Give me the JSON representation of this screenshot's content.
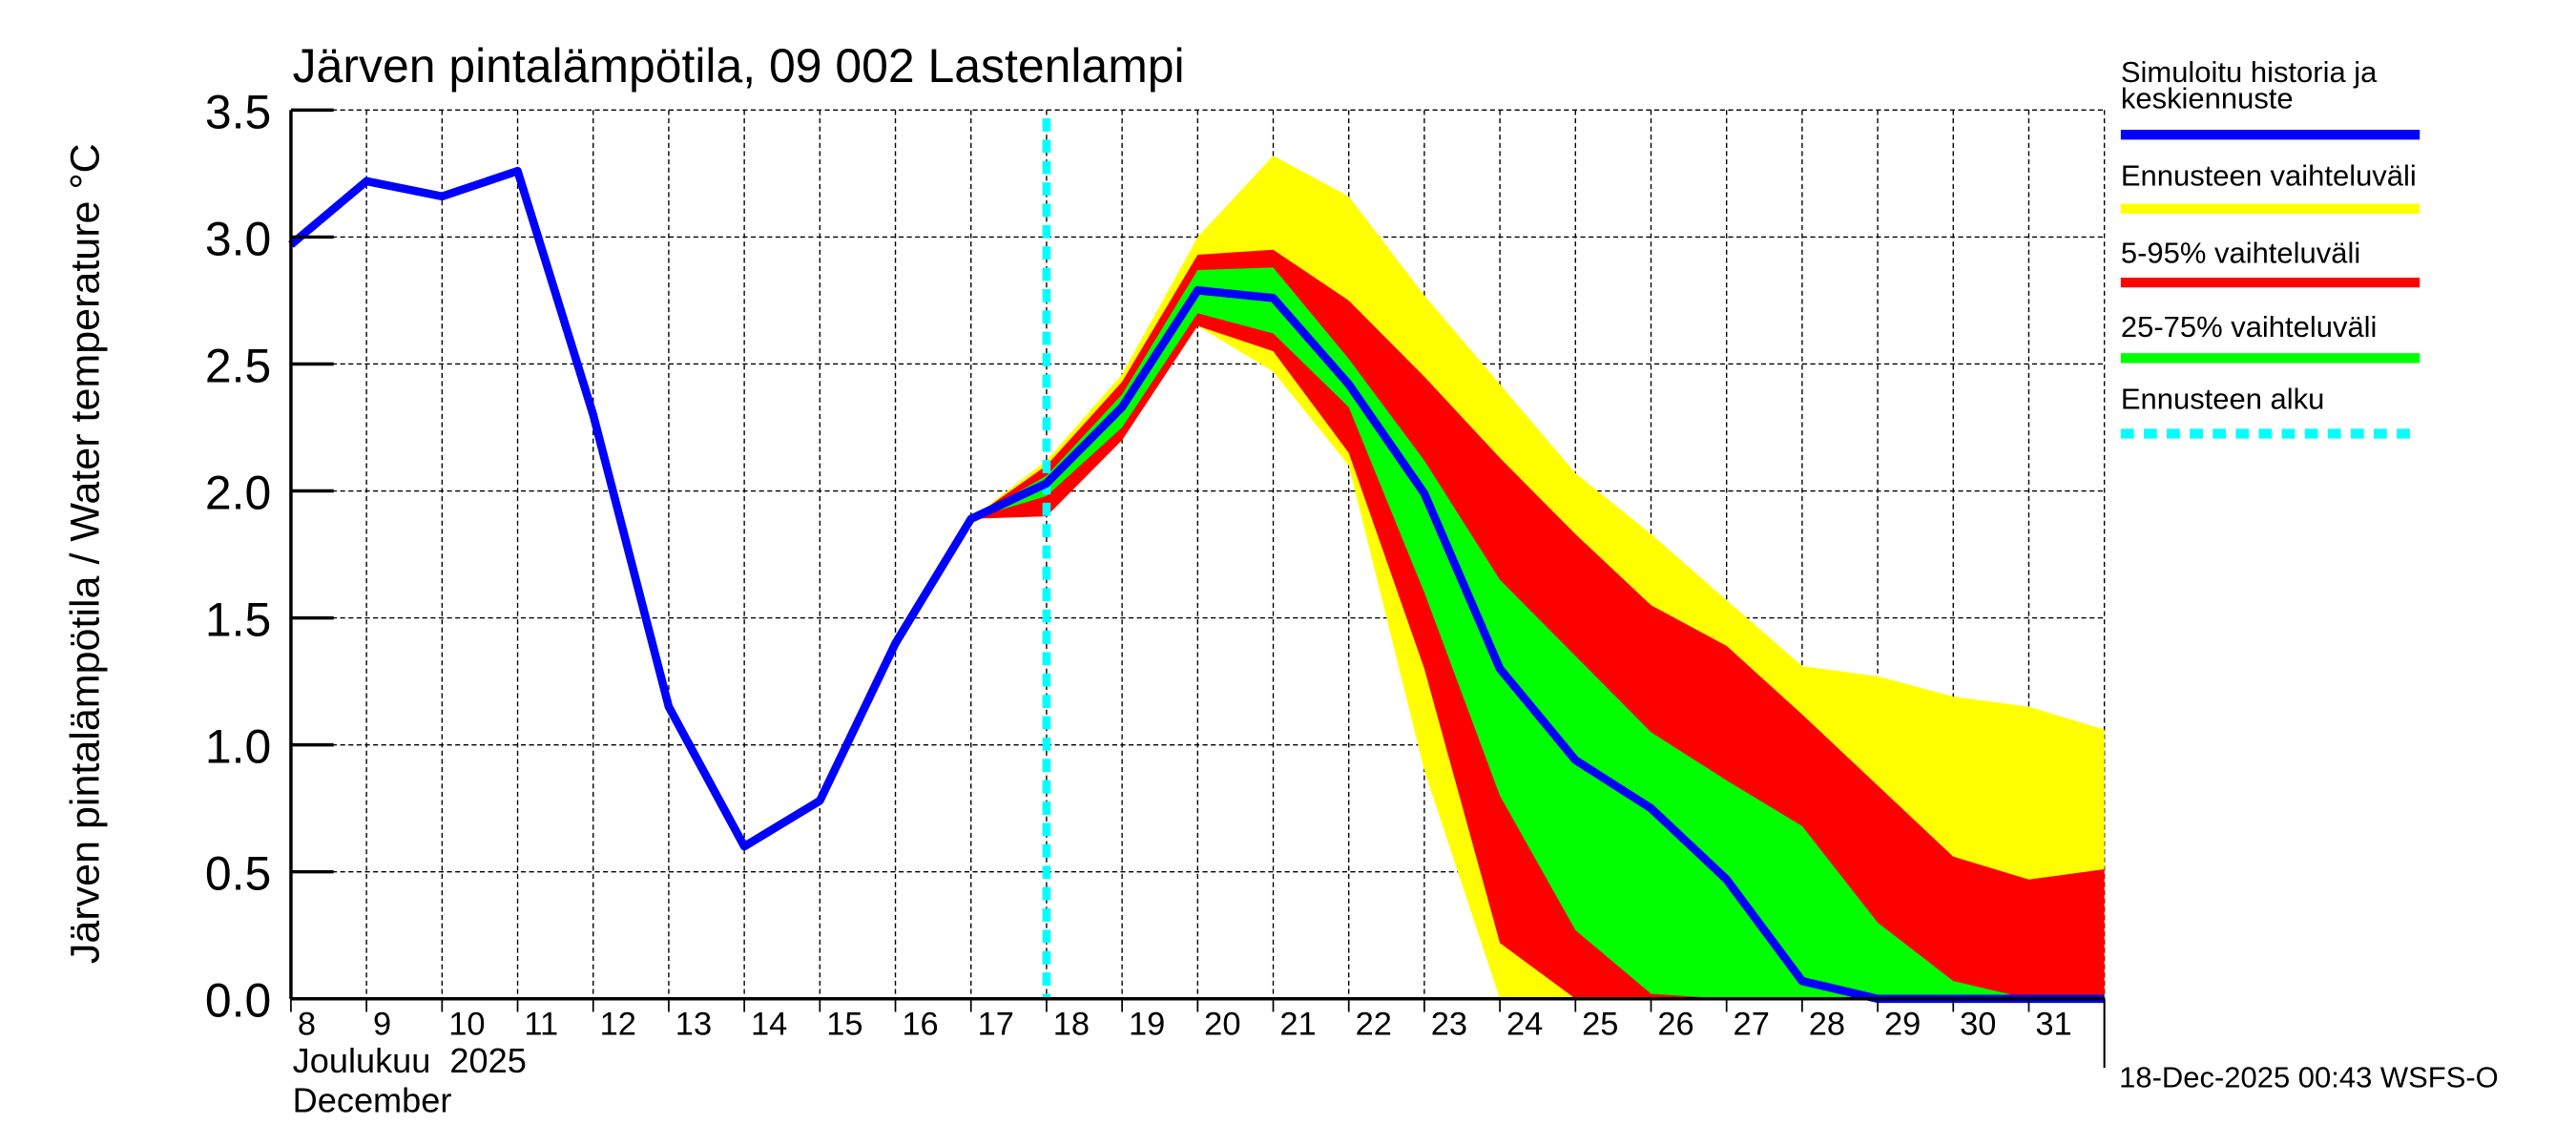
{
  "chart_data": {
    "type": "area",
    "title": "Järven pintalämpötila, 09 002 Lastenlampi",
    "ylabel": "Järven pintalämpötila / Water temperature °C",
    "xlabel_line1": "Joulukuu  2025",
    "xlabel_line2": "December",
    "ylim": [
      0,
      3.5
    ],
    "yticks": [
      "0.0",
      "0.5",
      "1.0",
      "1.5",
      "2.0",
      "2.5",
      "3.0",
      "3.5"
    ],
    "ytick_values": [
      0,
      0.5,
      1,
      1.5,
      2,
      2.5,
      3,
      3.5
    ],
    "xlim": [
      8,
      32
    ],
    "xticks": [
      "8",
      "9",
      "10",
      "11",
      "12",
      "13",
      "14",
      "15",
      "16",
      "17",
      "18",
      "19",
      "20",
      "21",
      "22",
      "23",
      "24",
      "25",
      "26",
      "27",
      "28",
      "29",
      "30",
      "31"
    ],
    "grid": true,
    "forecast_start_day": 18,
    "series": [
      {
        "name": "Ennusteen vaihteluväli",
        "color": "#ffff00",
        "x": [
          17,
          18,
          19,
          20,
          21,
          22,
          23,
          24,
          25,
          26,
          27,
          28,
          29,
          30,
          31,
          32
        ],
        "low": [
          1.89,
          1.92,
          2.2,
          2.65,
          2.47,
          2.1,
          0.9,
          0,
          0,
          0,
          0,
          0,
          0,
          0,
          0,
          0
        ],
        "high": [
          1.89,
          2.12,
          2.46,
          3.0,
          3.32,
          3.16,
          2.77,
          2.42,
          2.07,
          1.83,
          1.57,
          1.31,
          1.27,
          1.19,
          1.15,
          1.06
        ]
      },
      {
        "name": "5-95% vaihteluväli",
        "color": "#ff0000",
        "x": [
          17,
          18,
          19,
          20,
          21,
          22,
          23,
          24,
          25,
          26,
          27,
          28,
          29,
          30,
          31,
          32
        ],
        "low": [
          1.89,
          1.9,
          2.2,
          2.65,
          2.55,
          2.15,
          1.3,
          0.22,
          0,
          0,
          0,
          0,
          0,
          0,
          0,
          0
        ],
        "high": [
          1.89,
          2.1,
          2.43,
          2.93,
          2.95,
          2.75,
          2.45,
          2.13,
          1.83,
          1.55,
          1.39,
          1.12,
          0.84,
          0.56,
          0.47,
          0.51
        ]
      },
      {
        "name": "25-75% vaihteluväli",
        "color": "#00ff00",
        "x": [
          17,
          18,
          19,
          20,
          21,
          22,
          23,
          24,
          25,
          26,
          27,
          28,
          29,
          30,
          31,
          32
        ],
        "low": [
          1.89,
          1.98,
          2.25,
          2.7,
          2.62,
          2.33,
          1.6,
          0.8,
          0.27,
          0.02,
          0,
          0,
          0,
          0,
          0,
          0
        ],
        "high": [
          1.89,
          2.06,
          2.38,
          2.87,
          2.88,
          2.52,
          2.12,
          1.65,
          1.35,
          1.05,
          0.86,
          0.68,
          0.3,
          0.07,
          0,
          0
        ]
      },
      {
        "name": "Simuloitu historia ja keskiennuste",
        "color": "#0000ff",
        "x": [
          8,
          9,
          10,
          11,
          12,
          13,
          14,
          15,
          16,
          17,
          18,
          19,
          20,
          21,
          22,
          23,
          24,
          25,
          26,
          27,
          28,
          29,
          30,
          31,
          32
        ],
        "values": [
          2.97,
          3.22,
          3.16,
          3.26,
          2.3,
          1.15,
          0.6,
          0.78,
          1.4,
          1.89,
          2.03,
          2.33,
          2.79,
          2.76,
          2.42,
          1.99,
          1.3,
          0.94,
          0.75,
          0.47,
          0.07,
          0,
          0,
          0,
          0
        ]
      }
    ],
    "legend": {
      "placement": "right",
      "entries": [
        {
          "label1": "Simuloitu historia ja",
          "label2": "keskiennuste",
          "color": "#0000ff",
          "style": "solid"
        },
        {
          "label1": "Ennusteen vaihteluväli",
          "color": "#ffff00",
          "style": "solid"
        },
        {
          "label1": "5-95% vaihteluväli",
          "color": "#ff0000",
          "style": "solid"
        },
        {
          "label1": "25-75% vaihteluväli",
          "color": "#00ff00",
          "style": "solid"
        },
        {
          "label1": "Ennusteen alku",
          "color": "#00ffff",
          "style": "dashed"
        }
      ]
    },
    "footer": "18-Dec-2025 00:43 WSFS-O"
  }
}
